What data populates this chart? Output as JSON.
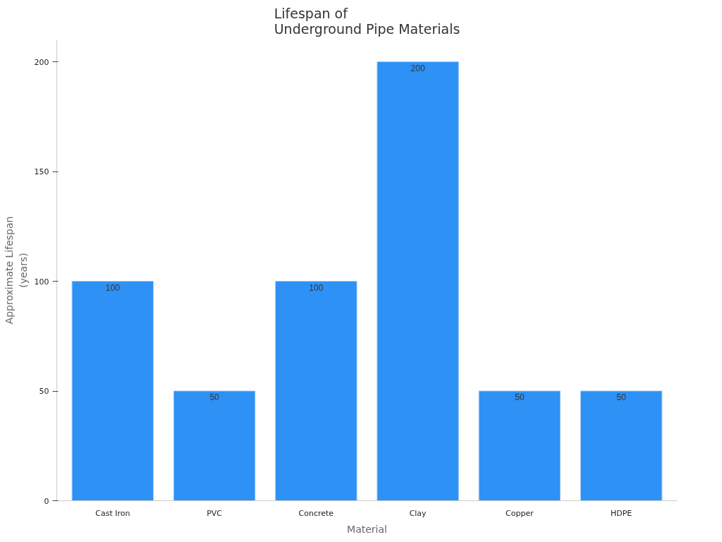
{
  "chart_data": {
    "type": "bar",
    "title": "Lifespan of\nUnderground Pipe Materials",
    "xlabel": "Material",
    "ylabel": "Approximate Lifespan\n(years)",
    "categories": [
      "Cast Iron",
      "PVC",
      "Concrete",
      "Clay",
      "Copper",
      "HDPE"
    ],
    "values": [
      100,
      50,
      100,
      200,
      50,
      50
    ],
    "color": "#2d91f5",
    "ylim": [
      0,
      210
    ],
    "yticks": [
      0,
      50,
      100,
      150,
      200
    ],
    "grid": false,
    "data_labels": true
  }
}
